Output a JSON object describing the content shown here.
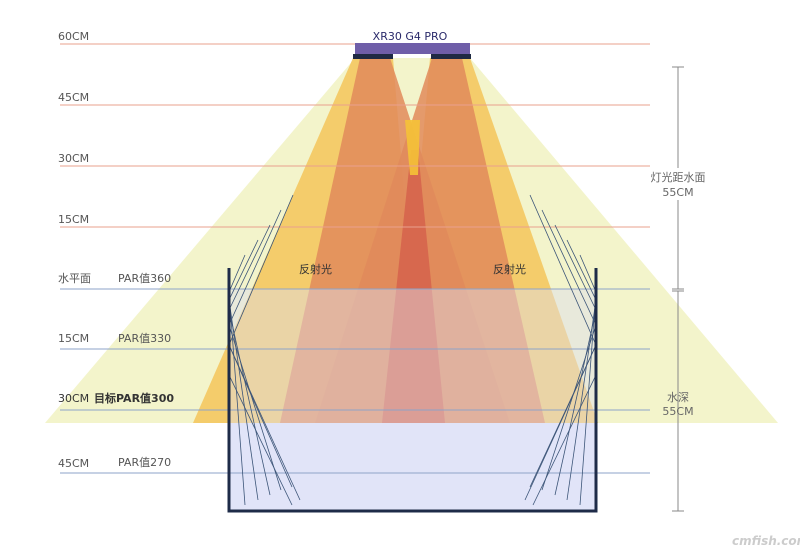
{
  "lamp": {
    "model": "XR30 G4 PRO"
  },
  "air_levels": [
    "60CM",
    "45CM",
    "30CM",
    "15CM"
  ],
  "water_surface": {
    "label": "水平面",
    "par": "PAR值360"
  },
  "water_levels": [
    {
      "depth": "15CM",
      "par": "PAR值330"
    },
    {
      "depth": "30CM",
      "par": "目标PAR值300"
    },
    {
      "depth": "45CM",
      "par": "PAR值270"
    }
  ],
  "reflection_label": "反射光",
  "dimensions": {
    "light_distance_label": "灯光距水面",
    "light_distance_value": "55CM",
    "water_depth_label": "水深",
    "water_depth_value": "55CM"
  },
  "watermark": "cmfish.com",
  "colors": {
    "outer_cone": "#f2f3c6",
    "mid_cone": "#f3c757",
    "inner_cone": "#e48a5a",
    "core": "#d8624a",
    "water": "#dfe3f7",
    "tank": "#1e2b48",
    "lamp": "#6f5ea8",
    "air_line": "#eaa08e",
    "water_line": "#8ea3c8"
  }
}
